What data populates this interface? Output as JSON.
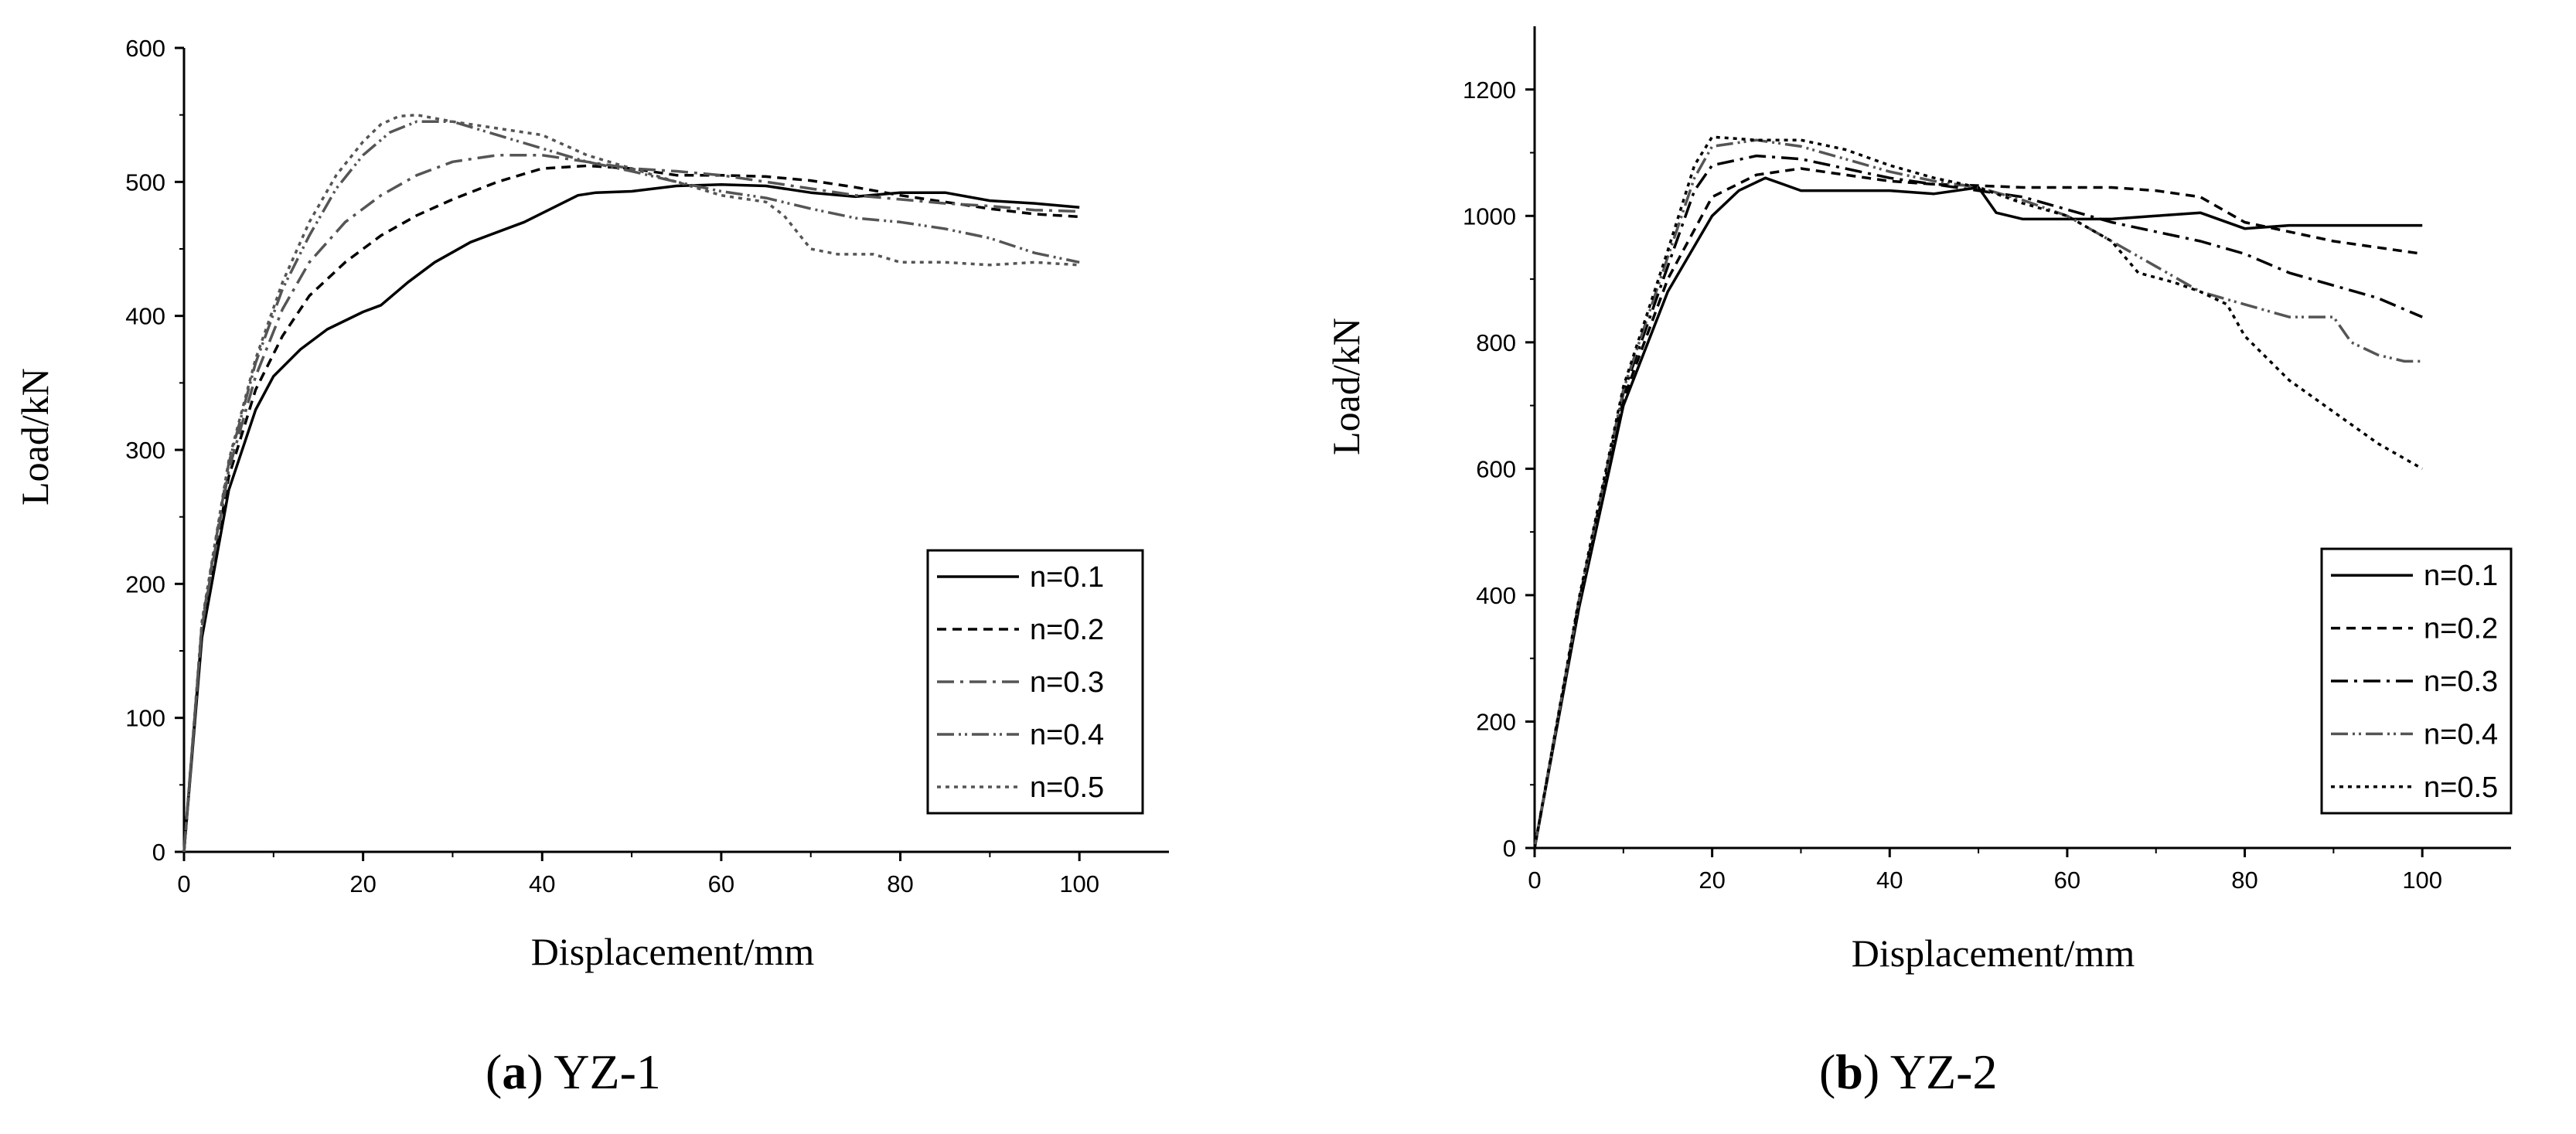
{
  "chart_data": [
    {
      "type": "line",
      "panel_label": "a",
      "panel_title": "YZ-1",
      "xlabel": "Displacement/mm",
      "ylabel": "Load/kN",
      "xlim": [
        0,
        110
      ],
      "ylim": [
        0,
        600
      ],
      "xticks": [
        0,
        20,
        40,
        60,
        80,
        100
      ],
      "yticks": [
        0,
        100,
        200,
        300,
        400,
        500,
        600
      ],
      "legend_position": "bottom-right",
      "series": [
        {
          "name": "n=0.1",
          "dash": "solid",
          "color": "#000000",
          "x": [
            0,
            2,
            5,
            8,
            10,
            13,
            16,
            20,
            22,
            25,
            28,
            32,
            38,
            44,
            46,
            50,
            55,
            60,
            65,
            70,
            75,
            80,
            85,
            90,
            95,
            100
          ],
          "y": [
            0,
            160,
            270,
            330,
            355,
            375,
            390,
            403,
            408,
            425,
            440,
            455,
            470,
            490,
            492,
            493,
            497,
            498,
            497,
            492,
            489,
            492,
            492,
            486,
            484,
            481
          ]
        },
        {
          "name": "n=0.2",
          "dash": "12,8",
          "color": "#000000",
          "x": [
            0,
            2,
            5,
            8,
            11,
            14,
            18,
            22,
            26,
            30,
            35,
            40,
            45,
            50,
            55,
            60,
            65,
            70,
            75,
            80,
            85,
            90,
            95,
            100
          ],
          "y": [
            0,
            165,
            280,
            345,
            385,
            415,
            440,
            460,
            475,
            487,
            500,
            510,
            512,
            510,
            505,
            505,
            504,
            501,
            496,
            490,
            485,
            480,
            476,
            474
          ]
        },
        {
          "name": "n=0.3",
          "dash": "22,8,4,8",
          "color": "#555555",
          "x": [
            0,
            2,
            5,
            8,
            11,
            14,
            18,
            22,
            26,
            30,
            35,
            40,
            45,
            50,
            55,
            60,
            65,
            70,
            75,
            80,
            85,
            90,
            95,
            100
          ],
          "y": [
            0,
            168,
            285,
            355,
            405,
            440,
            470,
            490,
            505,
            515,
            520,
            520,
            515,
            510,
            508,
            505,
            500,
            495,
            490,
            487,
            484,
            482,
            479,
            478
          ]
        },
        {
          "name": "n=0.4",
          "dash": "22,6,3,5,3,6",
          "color": "#555555",
          "x": [
            0,
            2,
            5,
            8,
            11,
            14,
            17,
            20,
            23,
            26,
            30,
            35,
            40,
            45,
            50,
            55,
            60,
            65,
            70,
            75,
            80,
            85,
            90,
            95,
            100
          ],
          "y": [
            0,
            170,
            290,
            365,
            420,
            460,
            495,
            520,
            537,
            545,
            545,
            535,
            525,
            515,
            508,
            500,
            493,
            488,
            480,
            473,
            470,
            465,
            458,
            447,
            440
          ]
        },
        {
          "name": "n=0.5",
          "dash": "5,6",
          "color": "#555555",
          "x": [
            0,
            2,
            5,
            8,
            11,
            14,
            17,
            20,
            22,
            24,
            26,
            30,
            35,
            40,
            45,
            50,
            55,
            60,
            65,
            67,
            70,
            73,
            77,
            80,
            85,
            90,
            95,
            100
          ],
          "y": [
            0,
            172,
            292,
            368,
            425,
            470,
            505,
            530,
            543,
            549,
            550,
            545,
            540,
            535,
            520,
            510,
            500,
            490,
            485,
            475,
            450,
            446,
            446,
            440,
            440,
            438,
            440,
            438
          ]
        }
      ]
    },
    {
      "type": "line",
      "panel_label": "b",
      "panel_title": "YZ-2",
      "xlabel": "Displacement/mm",
      "ylabel": "Load/kN",
      "xlim": [
        0,
        110
      ],
      "ylim": [
        0,
        1300
      ],
      "xticks": [
        0,
        20,
        40,
        60,
        80,
        100
      ],
      "yticks": [
        0,
        200,
        400,
        600,
        800,
        1000,
        1200
      ],
      "legend_position": "bottom-right",
      "series": [
        {
          "name": "n=0.1",
          "dash": "solid",
          "color": "#000000",
          "x": [
            0,
            5,
            10,
            15,
            20,
            23,
            26,
            28,
            30,
            35,
            40,
            45,
            50,
            52,
            55,
            60,
            65,
            70,
            75,
            80,
            85,
            90,
            95,
            100
          ],
          "y": [
            0,
            380,
            700,
            880,
            1000,
            1040,
            1060,
            1050,
            1040,
            1040,
            1040,
            1035,
            1045,
            1005,
            995,
            995,
            995,
            1000,
            1005,
            980,
            985,
            985,
            985,
            985
          ]
        },
        {
          "name": "n=0.2",
          "dash": "12,8",
          "color": "#000000",
          "x": [
            0,
            5,
            10,
            15,
            20,
            25,
            30,
            35,
            40,
            45,
            50,
            55,
            60,
            65,
            70,
            75,
            80,
            85,
            90,
            95,
            100
          ],
          "y": [
            0,
            385,
            710,
            900,
            1030,
            1065,
            1075,
            1065,
            1055,
            1050,
            1048,
            1045,
            1045,
            1045,
            1040,
            1030,
            990,
            975,
            960,
            950,
            940
          ]
        },
        {
          "name": "n=0.3",
          "dash": "22,8,4,8",
          "color": "#000000",
          "x": [
            0,
            5,
            10,
            15,
            18,
            20,
            25,
            30,
            35,
            40,
            45,
            50,
            55,
            60,
            65,
            70,
            75,
            80,
            85,
            90,
            95,
            100
          ],
          "y": [
            0,
            390,
            720,
            920,
            1040,
            1080,
            1095,
            1090,
            1075,
            1060,
            1050,
            1040,
            1030,
            1010,
            990,
            975,
            960,
            940,
            910,
            890,
            870,
            840
          ]
        },
        {
          "name": "n=0.4",
          "dash": "22,6,3,5,3,6",
          "color": "#555555",
          "x": [
            0,
            5,
            10,
            15,
            18,
            20,
            25,
            30,
            35,
            40,
            45,
            50,
            55,
            60,
            65,
            70,
            75,
            80,
            85,
            90,
            92,
            95,
            98,
            100
          ],
          "y": [
            0,
            392,
            725,
            935,
            1060,
            1110,
            1120,
            1110,
            1090,
            1070,
            1055,
            1045,
            1025,
            1000,
            960,
            920,
            880,
            860,
            840,
            840,
            800,
            780,
            770,
            770
          ]
        },
        {
          "name": "n=0.5",
          "dash": "5,6",
          "color": "#000000",
          "x": [
            0,
            5,
            10,
            15,
            18,
            20,
            25,
            30,
            35,
            40,
            45,
            50,
            55,
            60,
            65,
            68,
            72,
            75,
            78,
            80,
            85,
            90,
            95,
            100
          ],
          "y": [
            0,
            395,
            730,
            945,
            1080,
            1125,
            1120,
            1120,
            1105,
            1080,
            1060,
            1045,
            1020,
            1000,
            960,
            910,
            895,
            880,
            860,
            810,
            740,
            690,
            640,
            600
          ]
        }
      ]
    }
  ]
}
